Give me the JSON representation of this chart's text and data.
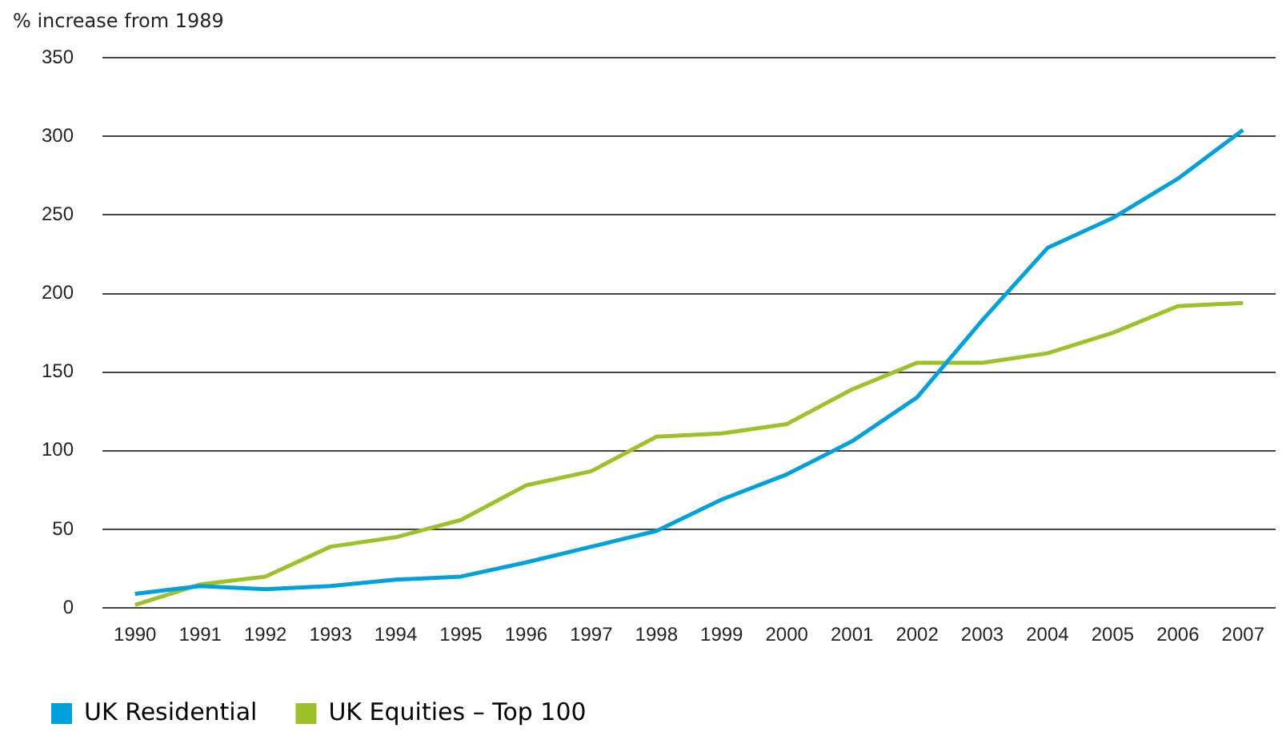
{
  "chart_data": {
    "type": "line",
    "ylabel": "% increase from 1989",
    "categories": [
      "1990",
      "1991",
      "1992",
      "1993",
      "1994",
      "1995",
      "1996",
      "1997",
      "1998",
      "1999",
      "2000",
      "2001",
      "2002",
      "2003",
      "2004",
      "2005",
      "2006",
      "2007"
    ],
    "series": [
      {
        "name": "UK Residential",
        "color": "#00a0dc",
        "values": [
          9,
          14,
          12,
          14,
          18,
          20,
          29,
          39,
          49,
          69,
          85,
          106,
          134,
          183,
          229,
          248,
          273,
          304
        ]
      },
      {
        "name": "UK Equities – Top 100",
        "color": "#9dc12a",
        "values": [
          2,
          15,
          20,
          39,
          45,
          56,
          78,
          87,
          109,
          111,
          117,
          139,
          156,
          156,
          162,
          175,
          192,
          194
        ]
      }
    ],
    "ylim": [
      0,
      350
    ],
    "yticks": [
      0,
      50,
      100,
      150,
      200,
      250,
      300,
      350
    ],
    "grid": "y",
    "legend": "bottom left",
    "marker": "none",
    "line_style": "solid"
  }
}
